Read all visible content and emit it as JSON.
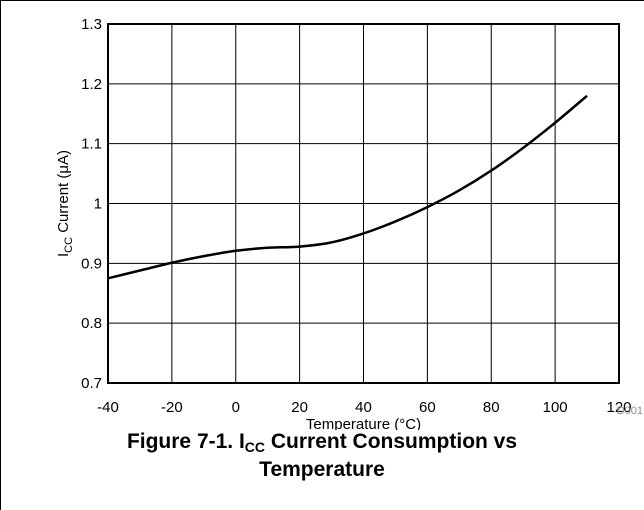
{
  "chart_data": {
    "type": "line",
    "xlabel": "Temperature (°C)",
    "ylabel": {
      "prefix": "I",
      "sub": "CC",
      "rest": " Current (μA)"
    },
    "xlim": [
      -40,
      120
    ],
    "ylim": [
      0.7,
      1.3
    ],
    "x_ticks": [
      "-40",
      "-20",
      "0",
      "20",
      "40",
      "60",
      "80",
      "100",
      "120"
    ],
    "y_ticks": [
      "0.7",
      "0.8",
      "0.9",
      "1",
      "1.1",
      "1.2",
      "1.3"
    ],
    "grid": true,
    "series": [
      {
        "x": [
          -40,
          -30,
          -20,
          -10,
          0,
          10,
          20,
          30,
          40,
          50,
          60,
          70,
          80,
          90,
          100,
          110
        ],
        "y": [
          0.875,
          0.888,
          0.901,
          0.912,
          0.921,
          0.926,
          0.928,
          0.935,
          0.95,
          0.97,
          0.994,
          1.022,
          1.055,
          1.093,
          1.135,
          1.18
        ],
        "color": "#000000"
      }
    ]
  },
  "figure_code": "D001",
  "caption": {
    "prefix": "Figure 7-1. I",
    "sub": "CC",
    "rest": " Current Consumption vs",
    "line2": "Temperature"
  }
}
